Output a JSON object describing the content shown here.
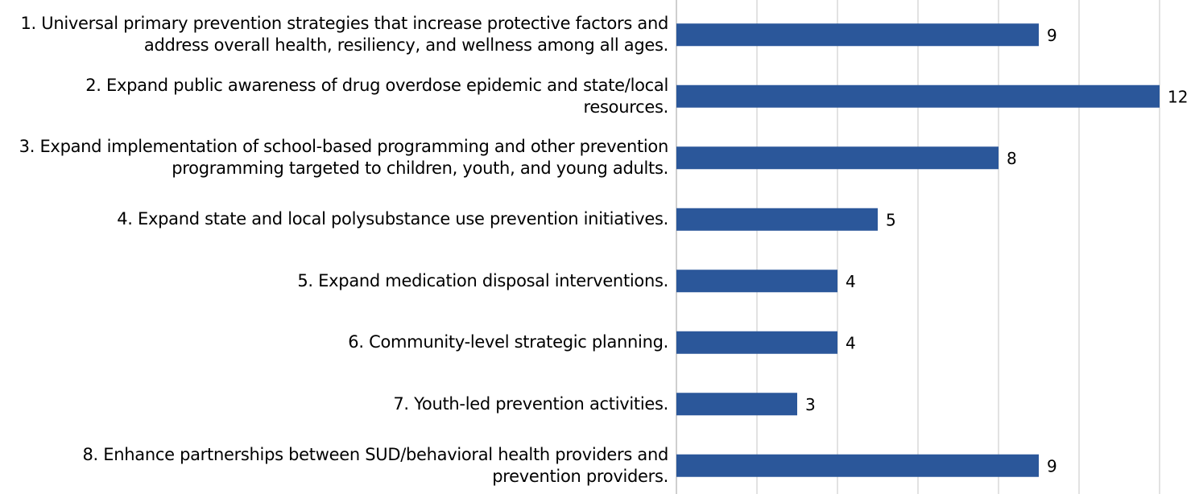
{
  "chart_data": {
    "type": "barh",
    "categories": [
      "1. Universal primary prevention strategies that increase protective factors and address overall health, resiliency, and wellness among all ages.",
      "2. Expand public awareness of drug overdose epidemic and state/local resources.",
      "3. Expand implementation of school-based programming and other prevention programming targeted to children, youth, and young adults.",
      "4. Expand state and local polysubstance use prevention initiatives.",
      "5. Expand medication disposal interventions.",
      "6. Community-level strategic planning.",
      "7. Youth-led prevention activities.",
      "8. Enhance partnerships between SUD/behavioral health providers and prevention providers."
    ],
    "values": [
      9,
      12,
      8,
      5,
      4,
      4,
      3,
      9
    ],
    "color": "#2b579a",
    "xlim": [
      0,
      12
    ],
    "xticks": [
      0,
      2,
      4,
      6,
      8,
      10,
      12
    ],
    "grid": true
  }
}
